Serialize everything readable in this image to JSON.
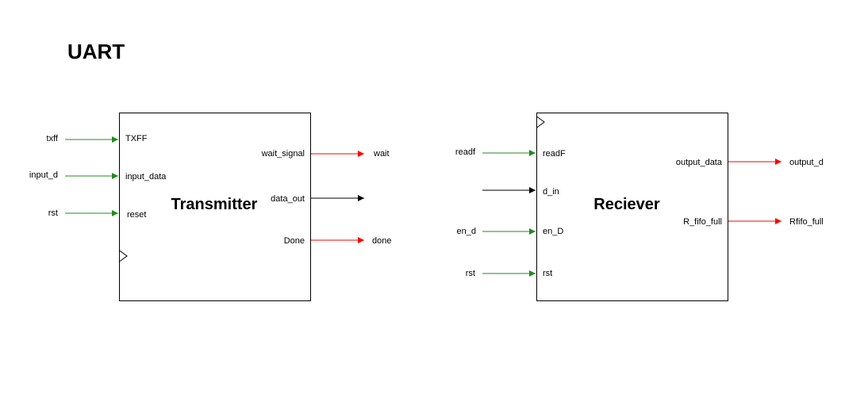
{
  "title": "UART",
  "colors": {
    "input_wire": "#228b22",
    "output_wire": "#ff0000",
    "plain_wire": "#000000",
    "block_border": "#000000"
  },
  "transmitter": {
    "name": "Transmitter",
    "inputs": [
      {
        "signal": "txff",
        "port": "TXFF"
      },
      {
        "signal": "input_d",
        "port": "input_data"
      },
      {
        "signal": "rst",
        "port": "reset"
      }
    ],
    "outputs": [
      {
        "port": "wait_signal",
        "signal": "wait"
      },
      {
        "port": "data_out",
        "signal": ""
      },
      {
        "port": "Done",
        "signal": "done"
      }
    ]
  },
  "receiver": {
    "name": "Reciever",
    "inputs": [
      {
        "signal": "readf",
        "port": "readF"
      },
      {
        "signal": "",
        "port": "d_in"
      },
      {
        "signal": "en_d",
        "port": "en_D"
      },
      {
        "signal": "rst",
        "port": "rst"
      }
    ],
    "outputs": [
      {
        "port": "output_data",
        "signal": "output_d"
      },
      {
        "port": "R_fifo_full",
        "signal": "Rfifo_full"
      }
    ]
  }
}
